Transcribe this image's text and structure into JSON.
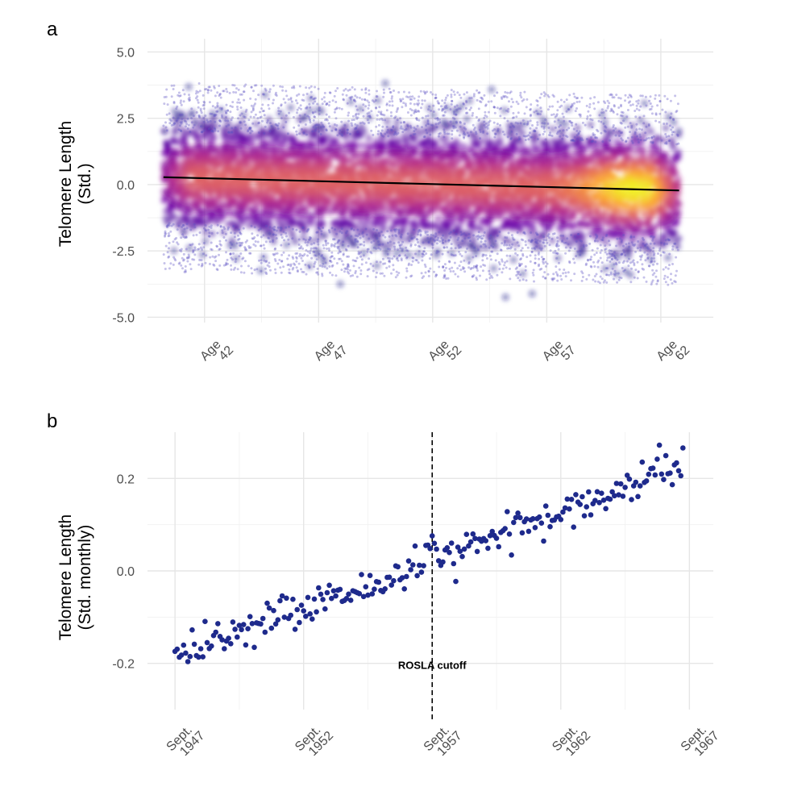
{
  "chart_data": [
    {
      "panel": "a",
      "type": "scatter",
      "title": "",
      "xlabel": "",
      "ylabel": [
        "Telomere Length",
        "(Std.)"
      ],
      "x_ticks": [
        {
          "value": 42,
          "label": [
            "Age",
            "42"
          ]
        },
        {
          "value": 47,
          "label": [
            "Age",
            "47"
          ]
        },
        {
          "value": 52,
          "label": [
            "Age",
            "52"
          ]
        },
        {
          "value": 57,
          "label": [
            "Age",
            "57"
          ]
        },
        {
          "value": 62,
          "label": [
            "Age",
            "62"
          ]
        }
      ],
      "y_ticks": [
        {
          "value": 5.0,
          "label": "5.0"
        },
        {
          "value": 2.5,
          "label": "2.5"
        },
        {
          "value": 0.0,
          "label": "0.0"
        },
        {
          "value": -2.5,
          "label": "-2.5"
        },
        {
          "value": -5.0,
          "label": "-5.0"
        }
      ],
      "xlim": [
        39.5,
        64.3
      ],
      "ylim": [
        -5.2,
        5.5
      ],
      "density": {
        "x_range": [
          40.2,
          62.8
        ],
        "y_mean_at_x_start": 0.28,
        "y_mean_at_x_end": -0.22,
        "y_sd": 1.0,
        "peak_x": 60.8,
        "colormap": [
          "#1c0f8a",
          "#6a00a8",
          "#b12a90",
          "#e16462",
          "#fca636",
          "#f0f921"
        ]
      },
      "fit_line": {
        "x": [
          40.2,
          62.8
        ],
        "y": [
          0.28,
          -0.22
        ],
        "color": "#000000"
      },
      "grid": true
    },
    {
      "panel": "b",
      "type": "scatter",
      "title": "",
      "xlabel": "",
      "ylabel": [
        "Telomere Length",
        "(Std. monthly)"
      ],
      "x_ticks": [
        {
          "value": 1947.67,
          "label": [
            "Sept.",
            "1947"
          ]
        },
        {
          "value": 1952.67,
          "label": [
            "Sept.",
            "1952"
          ]
        },
        {
          "value": 1957.67,
          "label": [
            "Sept.",
            "1957"
          ]
        },
        {
          "value": 1962.67,
          "label": [
            "Sept.",
            "1962"
          ]
        },
        {
          "value": 1967.67,
          "label": [
            "Sept.",
            "1967"
          ]
        }
      ],
      "y_ticks": [
        {
          "value": 0.2,
          "label": "0.2"
        },
        {
          "value": 0.0,
          "label": "0.0"
        },
        {
          "value": -0.2,
          "label": "-0.2"
        }
      ],
      "xlim": [
        1946.6,
        1968.6
      ],
      "ylim": [
        -0.3,
        0.3
      ],
      "point_color": "#1e2a8c",
      "monthly_trend": {
        "start_x": 1947.67,
        "end_x": 1967.5,
        "start_y": -0.19,
        "end_y": 0.23,
        "spread": 0.022,
        "months": 240
      },
      "cutoff": {
        "x": 1957.67,
        "label": "ROSLA cutoff",
        "style": "dashed"
      },
      "grid": true
    }
  ],
  "panels": {
    "a_label": "a",
    "b_label": "b"
  }
}
